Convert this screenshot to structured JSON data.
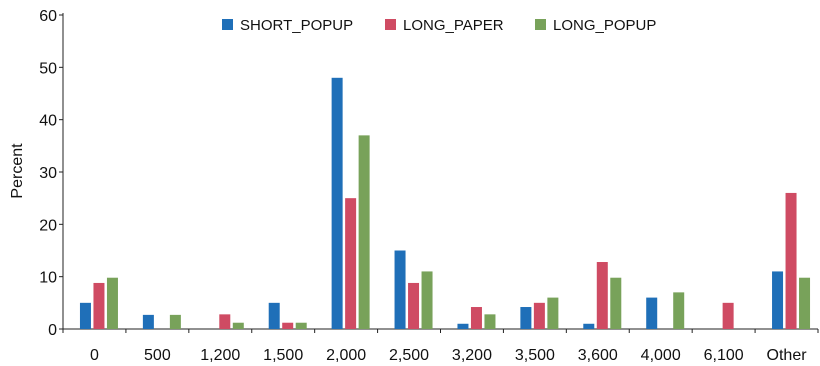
{
  "chart_data": {
    "type": "bar",
    "categories": [
      "0",
      "500",
      "1,200",
      "1,500",
      "2,000",
      "2,500",
      "3,200",
      "3,500",
      "3,600",
      "4,000",
      "6,100",
      "Other"
    ],
    "series": [
      {
        "name": "SHORT_POPUP",
        "color": "#1f6fb8",
        "values": [
          5,
          2.7,
          0,
          5,
          48,
          15,
          1,
          4.2,
          1,
          6,
          0,
          11
        ]
      },
      {
        "name": "LONG_PAPER",
        "color": "#cf4b63",
        "values": [
          8.8,
          0,
          2.8,
          1.2,
          25,
          8.8,
          4.2,
          5,
          12.8,
          0,
          5,
          26
        ]
      },
      {
        "name": "LONG_POPUP",
        "color": "#78a25a",
        "values": [
          9.8,
          2.7,
          1.2,
          1.2,
          37,
          11,
          2.8,
          6,
          9.8,
          7,
          0,
          9.8
        ]
      }
    ],
    "ylabel": "Percent",
    "xlabel": "",
    "ylim": [
      0,
      60
    ],
    "yticks": [
      0,
      10,
      20,
      30,
      40,
      50,
      60
    ],
    "grid": false,
    "legend_position": "top-center"
  }
}
